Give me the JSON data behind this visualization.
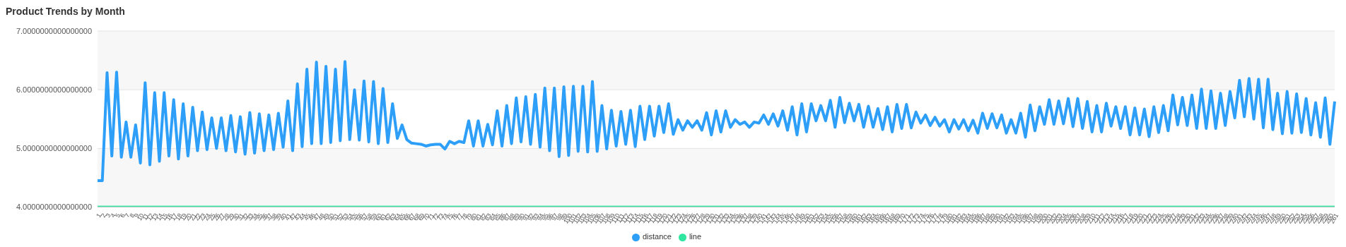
{
  "chart_data": {
    "type": "line",
    "title": "Product Trends by Month",
    "categories": [
      "1",
      "2",
      "3",
      "4",
      "5",
      "6",
      "7",
      "8",
      "9",
      "10",
      "11",
      "12",
      "13",
      "14",
      "15",
      "16",
      "17",
      "18",
      "19",
      "20",
      "21",
      "22",
      "23",
      "24",
      "25",
      "26",
      "27",
      "28",
      "29",
      "30",
      "31",
      "32",
      "33",
      "34",
      "35",
      "36",
      "37",
      "38",
      "39",
      "40",
      "41",
      "42",
      "43",
      "44",
      "45",
      "46",
      "47",
      "48",
      "49",
      "50",
      "51",
      "52",
      "53",
      "54",
      "55",
      "56",
      "57",
      "58",
      "59",
      "60",
      "61",
      "62",
      "63",
      "64",
      "65",
      "66",
      "67",
      "68",
      "69",
      "70",
      "71",
      "72",
      "73",
      "74",
      "75",
      "76",
      "77",
      "78",
      "79",
      "80",
      "81",
      "82",
      "83",
      "84",
      "85",
      "86",
      "87",
      "88",
      "89",
      "90",
      "91",
      "92",
      "93",
      "94",
      "95",
      "96",
      "97",
      "98",
      "99",
      "100",
      "101",
      "102",
      "103",
      "104",
      "105",
      "106",
      "107",
      "108",
      "109",
      "110",
      "111",
      "112",
      "113",
      "114",
      "115",
      "116",
      "117",
      "118",
      "119",
      "120",
      "121",
      "122",
      "123",
      "124",
      "125",
      "126",
      "127",
      "128",
      "129",
      "130",
      "131",
      "132",
      "133",
      "134",
      "135",
      "136",
      "137",
      "138",
      "139",
      "140",
      "141",
      "142",
      "143",
      "144",
      "145",
      "146",
      "147",
      "148",
      "149",
      "150",
      "151",
      "152",
      "153",
      "154",
      "155",
      "156",
      "157",
      "158",
      "159",
      "160",
      "161",
      "162",
      "163",
      "164",
      "165",
      "166",
      "167",
      "168",
      "169",
      "170",
      "171",
      "172",
      "173",
      "174",
      "175",
      "176",
      "177",
      "178",
      "179",
      "180",
      "181",
      "182",
      "183",
      "184",
      "185",
      "186",
      "187",
      "188",
      "189",
      "190",
      "191",
      "192",
      "193",
      "194",
      "195",
      "196",
      "197",
      "198",
      "199",
      "200",
      "201",
      "202",
      "203",
      "204",
      "205",
      "206",
      "207",
      "208",
      "209",
      "210",
      "211",
      "212",
      "213",
      "214",
      "215",
      "216",
      "217",
      "218",
      "219",
      "220",
      "221",
      "222",
      "223",
      "224",
      "225",
      "226",
      "227",
      "228",
      "229",
      "230",
      "231",
      "232",
      "233",
      "234",
      "235",
      "236",
      "237",
      "238",
      "239",
      "240",
      "241",
      "242",
      "243",
      "244",
      "245",
      "246",
      "247",
      "248",
      "249",
      "250",
      "251",
      "252",
      "253",
      "254",
      "255",
      "256",
      "257",
      "258",
      "259",
      "260",
      "261"
    ],
    "series": [
      {
        "name": "distance",
        "color": "#2d9ff8",
        "values": [
          4.45,
          4.45,
          6.29,
          4.87,
          6.3,
          4.85,
          5.45,
          4.85,
          5.4,
          4.75,
          6.12,
          4.72,
          5.95,
          4.78,
          5.95,
          4.87,
          5.83,
          4.82,
          5.76,
          4.87,
          5.7,
          4.96,
          5.62,
          4.98,
          5.52,
          5.0,
          5.52,
          4.96,
          5.56,
          4.94,
          5.54,
          4.9,
          5.61,
          4.92,
          5.59,
          4.96,
          5.57,
          4.98,
          5.6,
          5.02,
          5.81,
          4.96,
          6.1,
          5.03,
          6.35,
          5.08,
          6.47,
          5.08,
          6.4,
          5.1,
          6.35,
          5.13,
          6.48,
          5.15,
          6.0,
          5.14,
          6.15,
          5.11,
          6.14,
          5.08,
          6.02,
          5.1,
          5.76,
          5.17,
          5.4,
          5.15,
          5.09,
          5.08,
          5.07,
          5.04,
          5.06,
          5.07,
          5.07,
          4.99,
          5.12,
          5.08,
          5.12,
          5.1,
          5.47,
          5.04,
          5.47,
          5.04,
          5.41,
          5.06,
          5.64,
          5.04,
          5.73,
          5.08,
          5.86,
          5.11,
          5.88,
          5.07,
          5.92,
          5.02,
          6.03,
          4.96,
          6.03,
          4.86,
          6.05,
          4.88,
          6.06,
          4.95,
          6.06,
          4.94,
          6.14,
          4.95,
          5.73,
          4.99,
          5.65,
          5.04,
          5.63,
          5.07,
          5.65,
          5.03,
          5.72,
          5.15,
          5.72,
          5.21,
          5.72,
          5.27,
          5.76,
          5.24,
          5.49,
          5.31,
          5.47,
          5.36,
          5.47,
          5.31,
          5.61,
          5.23,
          5.64,
          5.28,
          5.64,
          5.36,
          5.49,
          5.41,
          5.45,
          5.36,
          5.45,
          5.43,
          5.57,
          5.41,
          5.59,
          5.38,
          5.64,
          5.31,
          5.71,
          5.23,
          5.76,
          5.28,
          5.76,
          5.47,
          5.73,
          5.47,
          5.82,
          5.36,
          5.87,
          5.44,
          5.77,
          5.47,
          5.75,
          5.36,
          5.72,
          5.36,
          5.68,
          5.32,
          5.71,
          5.28,
          5.75,
          5.34,
          5.75,
          5.35,
          5.62,
          5.43,
          5.57,
          5.39,
          5.53,
          5.38,
          5.49,
          5.28,
          5.49,
          5.33,
          5.49,
          5.3,
          5.48,
          5.26,
          5.6,
          5.34,
          5.59,
          5.35,
          5.57,
          5.26,
          5.49,
          5.26,
          5.6,
          5.19,
          5.74,
          5.3,
          5.71,
          5.41,
          5.83,
          5.41,
          5.81,
          5.42,
          5.85,
          5.37,
          5.85,
          5.34,
          5.8,
          5.28,
          5.73,
          5.28,
          5.77,
          5.38,
          5.71,
          5.34,
          5.71,
          5.23,
          5.69,
          5.23,
          5.67,
          5.2,
          5.71,
          5.27,
          5.73,
          5.3,
          5.91,
          5.4,
          5.87,
          5.39,
          5.91,
          5.34,
          6.01,
          5.34,
          5.98,
          5.34,
          5.94,
          5.39,
          5.97,
          5.52,
          6.16,
          5.54,
          6.19,
          5.5,
          6.18,
          5.35,
          6.18,
          5.32,
          5.94,
          5.25,
          5.97,
          5.26,
          5.93,
          5.27,
          5.85,
          5.23,
          5.78,
          5.19,
          5.86,
          5.07,
          5.8
        ]
      },
      {
        "name": "line",
        "color": "#2ee6a0",
        "values": [
          4,
          4,
          4,
          4,
          4,
          4,
          4,
          4,
          4,
          4,
          4,
          4,
          4,
          4,
          4,
          4,
          4,
          4,
          4,
          4,
          4,
          4,
          4,
          4,
          4,
          4,
          4,
          4,
          4,
          4,
          4,
          4,
          4,
          4,
          4,
          4,
          4,
          4,
          4,
          4,
          4,
          4,
          4,
          4,
          4,
          4,
          4,
          4,
          4,
          4,
          4,
          4,
          4,
          4,
          4,
          4,
          4,
          4,
          4,
          4,
          4,
          4,
          4,
          4,
          4,
          4,
          4,
          4,
          4,
          4,
          4,
          4,
          4,
          4,
          4,
          4,
          4,
          4,
          4,
          4,
          4,
          4,
          4,
          4,
          4,
          4,
          4,
          4,
          4,
          4,
          4,
          4,
          4,
          4,
          4,
          4,
          4,
          4,
          4,
          4,
          4,
          4,
          4,
          4,
          4,
          4,
          4,
          4,
          4,
          4,
          4,
          4,
          4,
          4,
          4,
          4,
          4,
          4,
          4,
          4,
          4,
          4,
          4,
          4,
          4,
          4,
          4,
          4,
          4,
          4,
          4,
          4,
          4,
          4,
          4,
          4,
          4,
          4,
          4,
          4,
          4,
          4,
          4,
          4,
          4,
          4,
          4,
          4,
          4,
          4,
          4,
          4,
          4,
          4,
          4,
          4,
          4,
          4,
          4,
          4,
          4,
          4,
          4,
          4,
          4,
          4,
          4,
          4,
          4,
          4,
          4,
          4,
          4,
          4,
          4,
          4,
          4,
          4,
          4,
          4,
          4,
          4,
          4,
          4,
          4,
          4,
          4,
          4,
          4,
          4,
          4,
          4,
          4,
          4,
          4,
          4,
          4,
          4,
          4,
          4,
          4,
          4,
          4,
          4,
          4,
          4,
          4,
          4,
          4,
          4,
          4,
          4,
          4,
          4,
          4,
          4,
          4,
          4,
          4,
          4,
          4,
          4,
          4,
          4,
          4,
          4,
          4,
          4,
          4,
          4,
          4,
          4,
          4,
          4,
          4,
          4,
          4,
          4,
          4,
          4,
          4,
          4,
          4,
          4,
          4,
          4,
          4,
          4,
          4,
          4,
          4,
          4,
          4,
          4,
          4,
          4,
          4,
          4,
          4,
          4,
          4
        ]
      }
    ],
    "ylim": [
      4,
      7
    ],
    "yticks": [
      {
        "value": 4,
        "label": "4.0000000000000000"
      },
      {
        "value": 5,
        "label": "5.0000000000000000"
      },
      {
        "value": 6,
        "label": "6.0000000000000000"
      },
      {
        "value": 7,
        "label": "7.0000000000000000"
      }
    ],
    "grid": "y",
    "legend": "bottom",
    "marker": "none",
    "line_style": "solid"
  }
}
